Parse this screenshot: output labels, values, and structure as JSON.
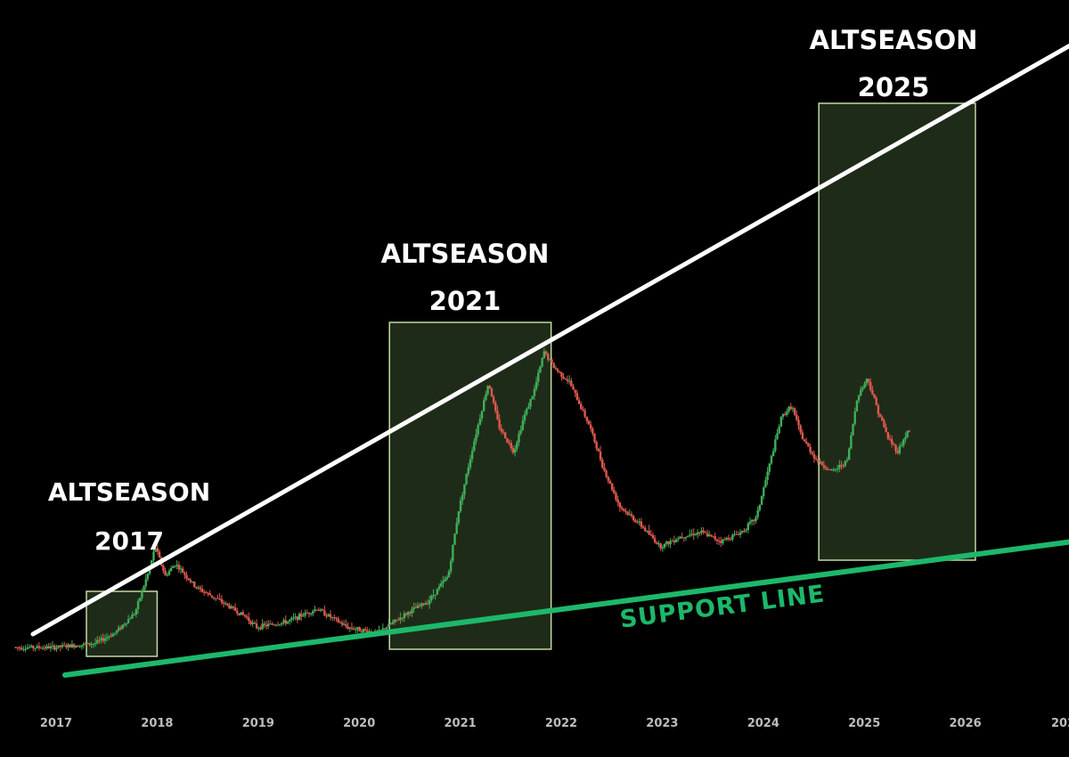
{
  "chart_data": {
    "type": "line",
    "style": "candlestick",
    "x_ticks": [
      "2017",
      "2018",
      "2019",
      "2020",
      "2021",
      "2022",
      "2023",
      "2024",
      "2025",
      "2026",
      "202"
    ],
    "y_scale": "log",
    "grid": false,
    "colors": {
      "background": "#000000",
      "up_candle": "#3fae5a",
      "down_candle": "#e0584e",
      "highlight_fill": "#2a3a22",
      "highlight_stroke": "#c3d9a0",
      "resistance_line": "#ffffff",
      "support_line": "#1db86a"
    },
    "series": [
      {
        "values": [
          {
            "t": 2016.6,
            "v": 0.06
          },
          {
            "t": 2017.0,
            "v": 0.06
          },
          {
            "t": 2017.4,
            "v": 0.065
          },
          {
            "t": 2017.6,
            "v": 0.08
          },
          {
            "t": 2017.8,
            "v": 0.12
          },
          {
            "t": 2017.95,
            "v": 0.3
          },
          {
            "t": 2018.0,
            "v": 0.45
          },
          {
            "t": 2018.1,
            "v": 0.25
          },
          {
            "t": 2018.2,
            "v": 0.32
          },
          {
            "t": 2018.4,
            "v": 0.2
          },
          {
            "t": 2018.6,
            "v": 0.16
          },
          {
            "t": 2018.9,
            "v": 0.11
          },
          {
            "t": 2019.0,
            "v": 0.09
          },
          {
            "t": 2019.3,
            "v": 0.1
          },
          {
            "t": 2019.6,
            "v": 0.13
          },
          {
            "t": 2019.9,
            "v": 0.09
          },
          {
            "t": 2020.2,
            "v": 0.08
          },
          {
            "t": 2020.5,
            "v": 0.12
          },
          {
            "t": 2020.7,
            "v": 0.15
          },
          {
            "t": 2020.9,
            "v": 0.25
          },
          {
            "t": 2021.0,
            "v": 0.9
          },
          {
            "t": 2021.15,
            "v": 3.5
          },
          {
            "t": 2021.3,
            "v": 12.0
          },
          {
            "t": 2021.4,
            "v": 5.0
          },
          {
            "t": 2021.55,
            "v": 3.0
          },
          {
            "t": 2021.65,
            "v": 6.0
          },
          {
            "t": 2021.75,
            "v": 10.0
          },
          {
            "t": 2021.85,
            "v": 22.0
          },
          {
            "t": 2021.95,
            "v": 16.0
          },
          {
            "t": 2022.1,
            "v": 12.0
          },
          {
            "t": 2022.3,
            "v": 5.0
          },
          {
            "t": 2022.45,
            "v": 2.0
          },
          {
            "t": 2022.6,
            "v": 1.0
          },
          {
            "t": 2022.8,
            "v": 0.7
          },
          {
            "t": 2023.0,
            "v": 0.45
          },
          {
            "t": 2023.2,
            "v": 0.55
          },
          {
            "t": 2023.4,
            "v": 0.6
          },
          {
            "t": 2023.6,
            "v": 0.5
          },
          {
            "t": 2023.8,
            "v": 0.6
          },
          {
            "t": 2023.95,
            "v": 0.8
          },
          {
            "t": 2024.05,
            "v": 1.8
          },
          {
            "t": 2024.2,
            "v": 6.0
          },
          {
            "t": 2024.3,
            "v": 7.5
          },
          {
            "t": 2024.4,
            "v": 4.0
          },
          {
            "t": 2024.55,
            "v": 2.5
          },
          {
            "t": 2024.7,
            "v": 2.0
          },
          {
            "t": 2024.85,
            "v": 2.5
          },
          {
            "t": 2024.95,
            "v": 9.0
          },
          {
            "t": 2025.05,
            "v": 13.0
          },
          {
            "t": 2025.15,
            "v": 7.0
          },
          {
            "t": 2025.25,
            "v": 4.0
          },
          {
            "t": 2025.35,
            "v": 3.0
          },
          {
            "t": 2025.45,
            "v": 4.5
          }
        ]
      }
    ],
    "zones": [
      {
        "title": "ALTSEASON",
        "year": "2017",
        "t_start": 2017.3,
        "t_end": 2018.0
      },
      {
        "title": "ALTSEASON",
        "year": "2021",
        "t_start": 2020.3,
        "t_end": 2021.9
      },
      {
        "title": "ALTSEASON",
        "year": "2025",
        "t_start": 2024.55,
        "t_end": 2026.1
      }
    ],
    "trendlines": {
      "resistance": {
        "label": ""
      },
      "support": {
        "label": "SUPPORT LINE"
      }
    }
  }
}
